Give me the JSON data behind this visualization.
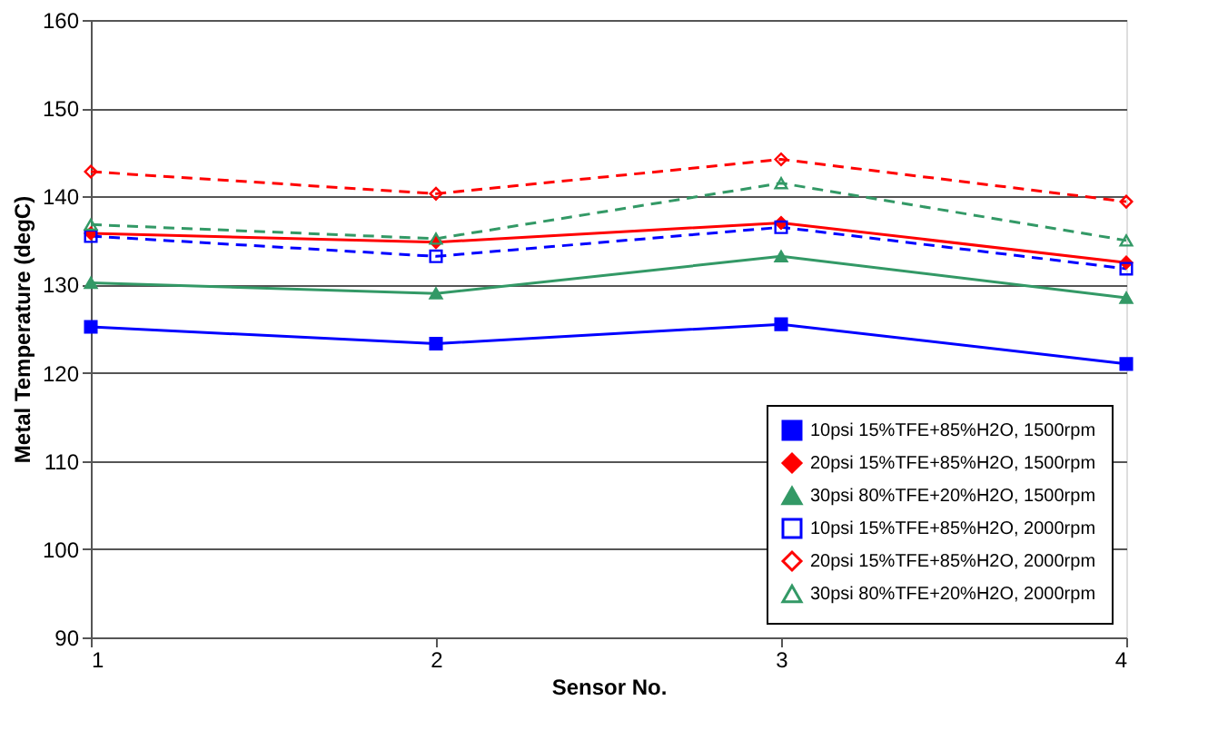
{
  "chart_data": {
    "type": "line",
    "xlabel": "Sensor No.",
    "ylabel": "Metal Temperature (degC)",
    "x": [
      1,
      2,
      3,
      4
    ],
    "xlim": [
      1,
      4
    ],
    "xticks": [
      1,
      2,
      3,
      4
    ],
    "ylim": [
      90,
      160
    ],
    "yticks": [
      90,
      100,
      110,
      120,
      130,
      140,
      150,
      160
    ],
    "grid": "y",
    "legend": "bottom right",
    "series": [
      {
        "name": "10psi 15%TFE+85%H2O, 1500rpm",
        "color": "#0000ff",
        "marker": "square",
        "line_style": "solid",
        "values": [
          125.2,
          123.3,
          125.5,
          121.0
        ]
      },
      {
        "name": "20psi 15%TFE+85%H2O, 1500rpm",
        "color": "#ff0000",
        "marker": "diamond",
        "line_style": "solid",
        "values": [
          135.8,
          134.8,
          137.0,
          132.5
        ]
      },
      {
        "name": "30psi 80%TFE+20%H2O, 1500rpm",
        "color": "#339966",
        "marker": "triangle",
        "line_style": "solid",
        "values": [
          130.2,
          129.0,
          133.2,
          128.5
        ]
      },
      {
        "name": "10psi 15%TFE+85%H2O, 2000rpm",
        "color": "#0000ff",
        "marker": "square",
        "line_style": "dashed",
        "values": [
          135.5,
          133.2,
          136.5,
          131.8
        ]
      },
      {
        "name": "20psi 15%TFE+85%H2O, 2000rpm",
        "color": "#ff0000",
        "marker": "diamond",
        "line_style": "dashed",
        "values": [
          142.8,
          140.3,
          144.2,
          139.4
        ]
      },
      {
        "name": "30psi 80%TFE+20%H2O, 2000rpm",
        "color": "#339966",
        "marker": "triangle",
        "line_style": "dashed",
        "values": [
          136.8,
          135.2,
          141.5,
          135.0
        ]
      }
    ]
  }
}
